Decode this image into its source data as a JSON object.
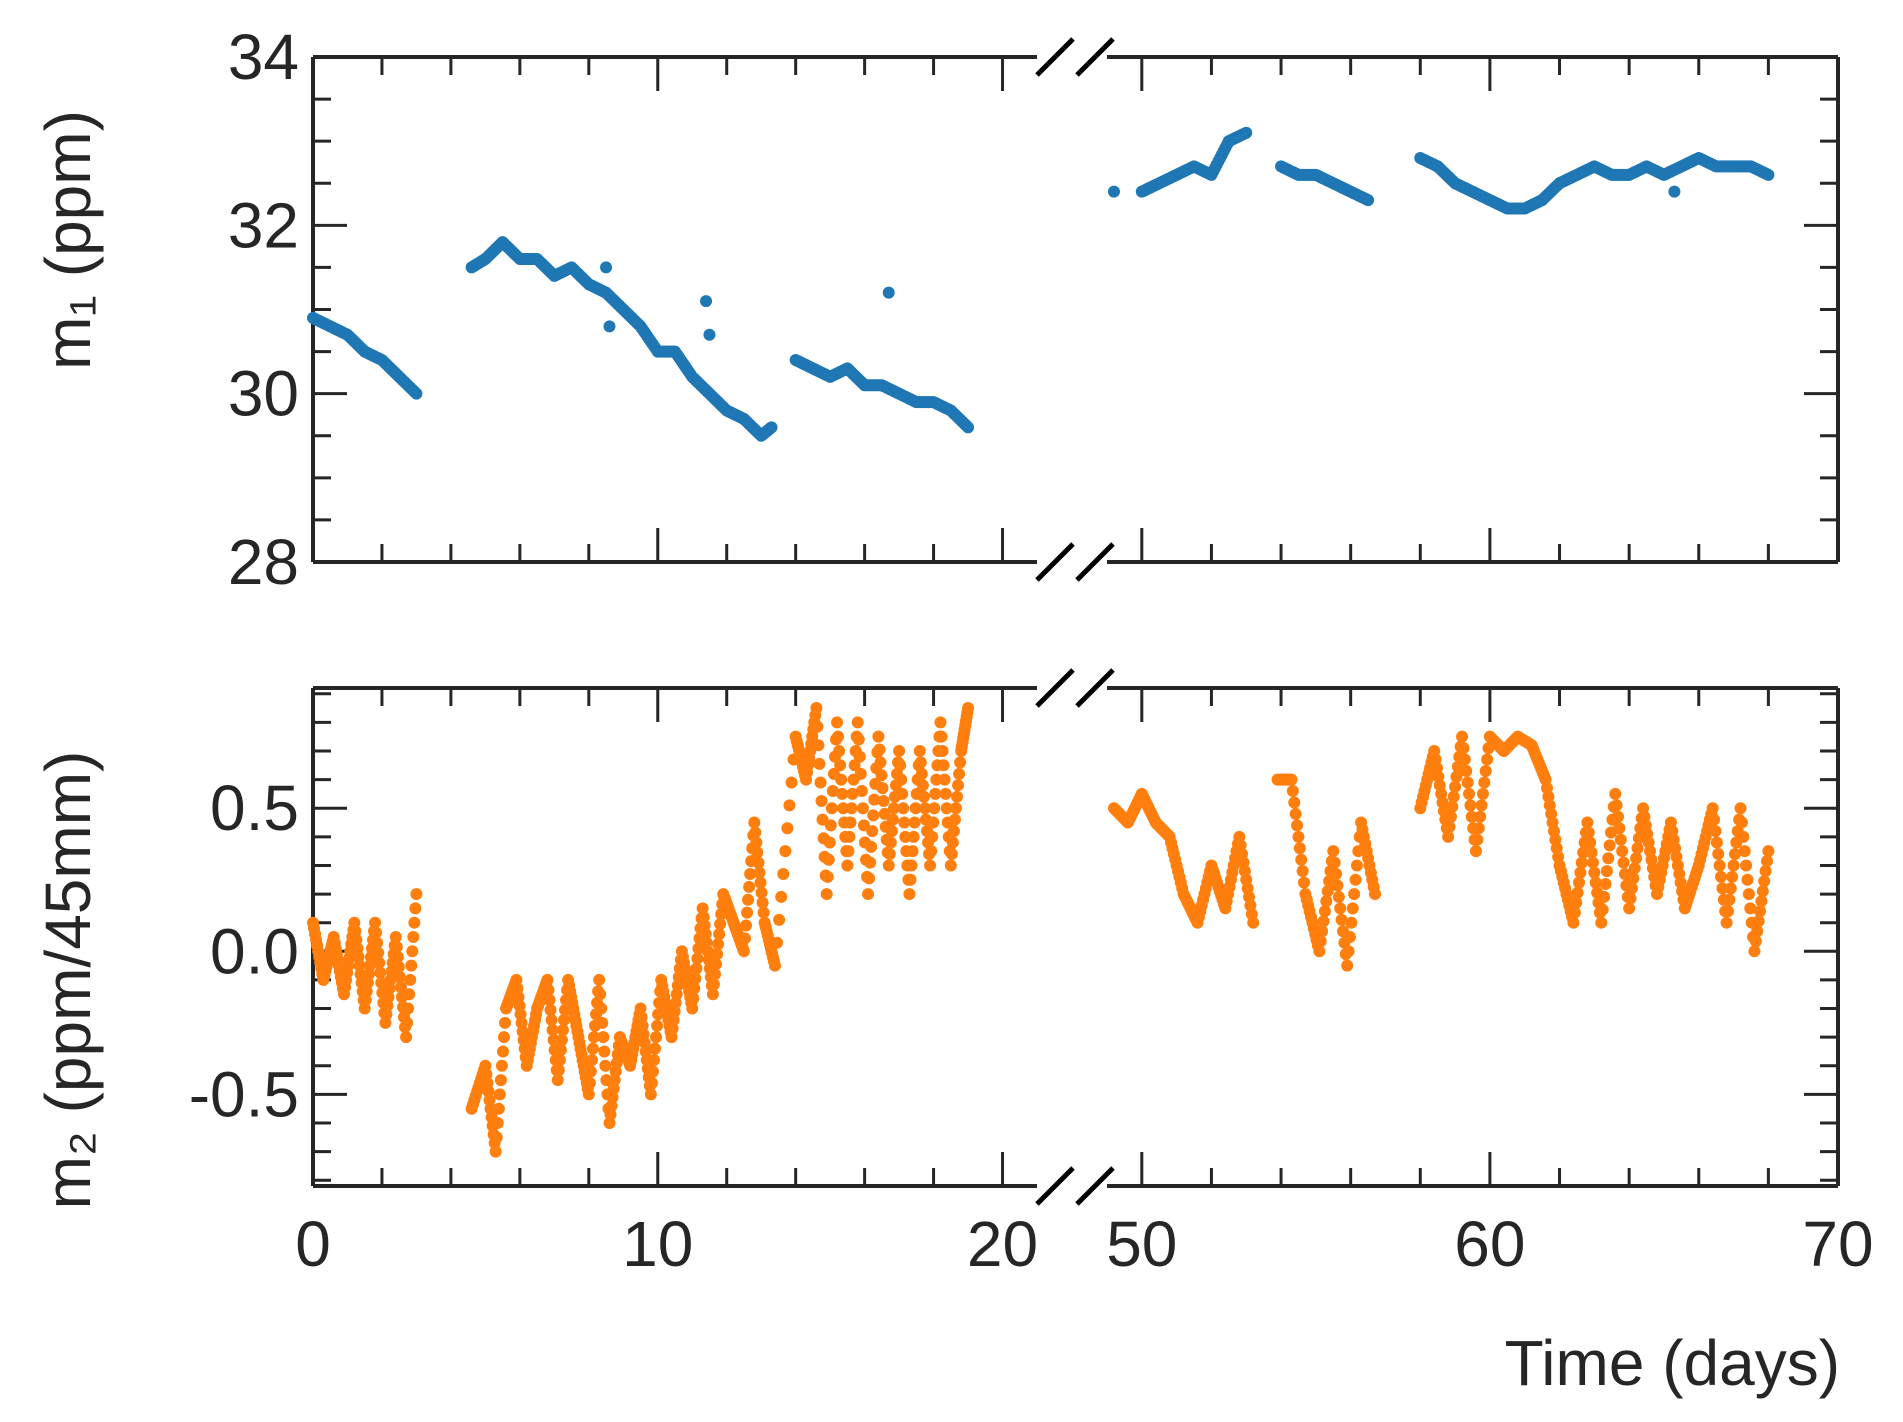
{
  "chart_data": [
    {
      "type": "scatter",
      "panel": "top",
      "ylabel": "m₁ (ppm)",
      "ylim": [
        28,
        34
      ],
      "yticks": [
        "28",
        "30",
        "32",
        "34"
      ],
      "broken_x_axis": true,
      "xlim_segments": [
        [
          0,
          21
        ],
        [
          49,
          70
        ]
      ],
      "color": "#1f77b4",
      "series": [
        {
          "x": [
            0,
            0.5,
            1,
            1.5,
            2,
            2.5,
            3,
            4.6,
            5,
            5.5,
            6,
            6.5,
            7,
            7.5,
            8,
            8.5,
            9,
            9.5,
            10,
            10.5,
            11,
            11.5,
            12,
            12.5,
            13,
            13.3,
            14,
            14.5,
            15,
            15.5,
            16,
            16.5,
            17,
            17.5,
            18,
            18.5,
            19,
            49.2,
            50,
            50.5,
            51,
            51.5,
            52,
            52.5,
            53,
            54,
            54.5,
            55,
            55.5,
            56,
            56.5,
            58,
            58.5,
            59,
            59.5,
            60,
            60.5,
            61,
            61.5,
            62,
            62.5,
            63,
            63.5,
            64,
            64.5,
            65,
            65.5,
            66,
            66.5,
            67,
            67.5,
            68
          ],
          "y": [
            30.9,
            30.8,
            30.7,
            30.5,
            30.4,
            30.2,
            30.0,
            31.5,
            31.6,
            31.8,
            31.6,
            31.6,
            31.4,
            31.5,
            31.3,
            31.2,
            31.0,
            30.8,
            30.5,
            30.5,
            30.2,
            30.0,
            29.8,
            29.7,
            29.5,
            29.6,
            30.4,
            30.3,
            30.2,
            30.3,
            30.1,
            30.1,
            30.0,
            29.9,
            29.9,
            29.8,
            29.6,
            32.4,
            32.4,
            32.5,
            32.6,
            32.7,
            32.6,
            33.0,
            33.1,
            32.7,
            32.6,
            32.6,
            32.5,
            32.4,
            32.3,
            32.8,
            32.7,
            32.5,
            32.4,
            32.3,
            32.2,
            32.2,
            32.3,
            32.5,
            32.6,
            32.7,
            32.6,
            32.6,
            32.7,
            32.6,
            32.7,
            32.8,
            32.7,
            32.7,
            32.7,
            32.6
          ],
          "outliers_x": [
            8.5,
            8.6,
            11.4,
            11.5,
            16.7,
            65.3
          ],
          "outliers_y": [
            31.5,
            30.8,
            31.1,
            30.7,
            31.2,
            32.4
          ]
        }
      ]
    },
    {
      "type": "scatter",
      "panel": "bottom",
      "xlabel": "Time (days)",
      "ylabel": "m₂ (ppm/45mm)",
      "ylim": [
        -0.82,
        0.92
      ],
      "yticks": [
        "-0.5",
        "0.0",
        "0.5"
      ],
      "xticks": [
        "0",
        "10",
        "20",
        "50",
        "60",
        "70"
      ],
      "broken_x_axis": true,
      "xlim_segments": [
        [
          0,
          21
        ],
        [
          49,
          70
        ]
      ],
      "color": "#ff7f0e",
      "series": [
        {
          "x": [
            0,
            0.3,
            0.6,
            0.9,
            1.2,
            1.5,
            1.8,
            2.1,
            2.4,
            2.7,
            3.0,
            4.6,
            5.0,
            5.3,
            5.6,
            5.9,
            6.2,
            6.5,
            6.8,
            7.1,
            7.4,
            7.7,
            8.0,
            8.3,
            8.6,
            8.9,
            9.2,
            9.5,
            9.8,
            10.1,
            10.4,
            10.7,
            11.0,
            11.3,
            11.6,
            11.9,
            12.2,
            12.5,
            12.8,
            13.1,
            13.4,
            14.0,
            14.3,
            14.6,
            14.9,
            15.2,
            15.5,
            15.8,
            16.1,
            16.4,
            16.7,
            17.0,
            17.3,
            17.6,
            17.9,
            18.2,
            18.5,
            18.8,
            19.0,
            49.2,
            49.6,
            50.0,
            50.4,
            50.8,
            51.2,
            51.6,
            52.0,
            52.4,
            52.8,
            53.2,
            53.9,
            54.3,
            54.7,
            55.1,
            55.5,
            55.9,
            56.3,
            56.7,
            58.0,
            58.4,
            58.8,
            59.2,
            59.6,
            60.0,
            60.4,
            60.8,
            61.2,
            61.6,
            62.0,
            62.4,
            62.8,
            63.2,
            63.6,
            64.0,
            64.4,
            64.8,
            65.2,
            65.6,
            66.0,
            66.4,
            66.8,
            67.2,
            67.6,
            68.0
          ],
          "y": [
            0.1,
            -0.1,
            0.05,
            -0.15,
            0.1,
            -0.2,
            0.1,
            -0.25,
            0.05,
            -0.3,
            0.2,
            -0.55,
            -0.4,
            -0.7,
            -0.2,
            -0.1,
            -0.4,
            -0.2,
            -0.1,
            -0.45,
            -0.1,
            -0.3,
            -0.5,
            -0.1,
            -0.6,
            -0.3,
            -0.4,
            -0.2,
            -0.5,
            -0.1,
            -0.3,
            0.0,
            -0.2,
            0.15,
            -0.15,
            0.2,
            0.1,
            0.0,
            0.45,
            0.1,
            -0.05,
            0.75,
            0.6,
            0.85,
            0.2,
            0.8,
            0.3,
            0.8,
            0.2,
            0.75,
            0.3,
            0.7,
            0.2,
            0.7,
            0.3,
            0.8,
            0.3,
            0.7,
            0.85,
            0.5,
            0.45,
            0.55,
            0.45,
            0.4,
            0.2,
            0.1,
            0.3,
            0.15,
            0.4,
            0.1,
            0.6,
            0.6,
            0.2,
            0.0,
            0.35,
            -0.05,
            0.45,
            0.2,
            0.5,
            0.7,
            0.4,
            0.75,
            0.35,
            0.75,
            0.7,
            0.75,
            0.72,
            0.6,
            0.3,
            0.1,
            0.45,
            0.1,
            0.55,
            0.15,
            0.5,
            0.2,
            0.45,
            0.15,
            0.3,
            0.5,
            0.1,
            0.5,
            0.0,
            0.35
          ]
        }
      ]
    }
  ]
}
